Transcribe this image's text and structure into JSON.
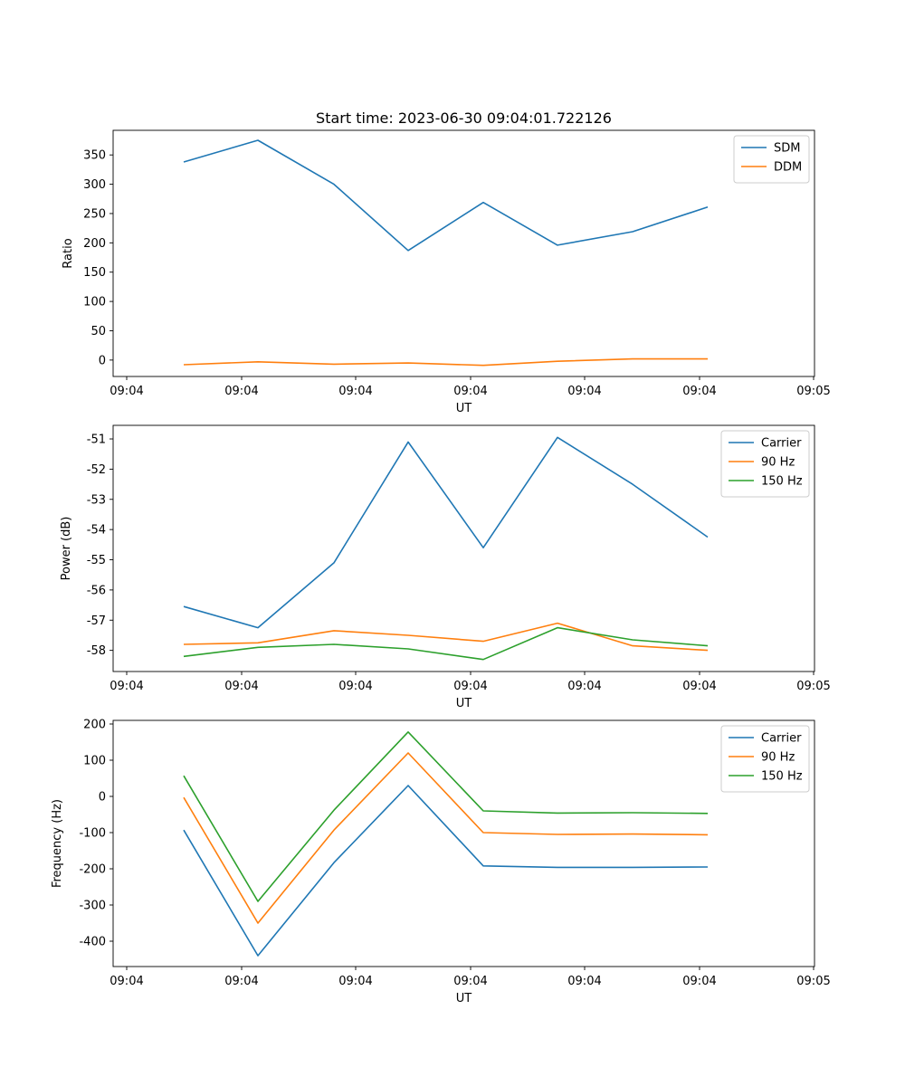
{
  "chart_data": [
    {
      "type": "line",
      "title": "Start time: 2023-06-30 09:04:01.722126",
      "xlabel": "UT",
      "ylabel": "Ratio",
      "ylim": [
        -28,
        392
      ],
      "yticks": [
        0,
        50,
        100,
        150,
        200,
        250,
        300,
        350
      ],
      "xticks": [
        "09:04",
        "09:04",
        "09:04",
        "09:04",
        "09:04",
        "09:04",
        "09:04"
      ],
      "xticks_last": "09:05",
      "legend_position": "top-right",
      "series": [
        {
          "name": "SDM",
          "color": "#1f77b4",
          "values": [
            338,
            375,
            300,
            187,
            269,
            196,
            219,
            261
          ]
        },
        {
          "name": "DDM",
          "color": "#ff7f0e",
          "values": [
            -8,
            -3,
            -7,
            -5,
            -9,
            -2,
            2,
            2
          ]
        }
      ]
    },
    {
      "type": "line",
      "title": "",
      "xlabel": "UT",
      "ylabel": "Power (dB)",
      "ylim": [
        -58.7,
        -50.55
      ],
      "yticks": [
        -51,
        -52,
        -53,
        -54,
        -55,
        -56,
        -57,
        -58
      ],
      "xticks": [
        "09:04",
        "09:04",
        "09:04",
        "09:04",
        "09:04",
        "09:04",
        "09:04"
      ],
      "xticks_last": "09:05",
      "legend_position": "top-right",
      "series": [
        {
          "name": "Carrier",
          "color": "#1f77b4",
          "values": [
            -56.55,
            -57.25,
            -55.1,
            -51.1,
            -54.6,
            -50.95,
            -52.5,
            -54.25
          ]
        },
        {
          "name": "90 Hz",
          "color": "#ff7f0e",
          "values": [
            -57.8,
            -57.75,
            -57.35,
            -57.5,
            -57.7,
            -57.1,
            -57.85,
            -58.0
          ]
        },
        {
          "name": "150 Hz",
          "color": "#2ca02c",
          "values": [
            -58.2,
            -57.9,
            -57.8,
            -57.95,
            -58.3,
            -57.25,
            -57.65,
            -57.85
          ]
        }
      ]
    },
    {
      "type": "line",
      "title": "",
      "xlabel": "UT",
      "ylabel": "Frequency (Hz)",
      "ylim": [
        -470,
        210
      ],
      "yticks": [
        200,
        100,
        0,
        -100,
        -200,
        -300,
        -400
      ],
      "xticks": [
        "09:04",
        "09:04",
        "09:04",
        "09:04",
        "09:04",
        "09:04",
        "09:04"
      ],
      "xticks_last": "09:05",
      "legend_position": "top-right",
      "series": [
        {
          "name": "Carrier",
          "color": "#1f77b4",
          "values": [
            -93,
            -440,
            -183,
            30,
            -192,
            -196,
            -196,
            -195
          ]
        },
        {
          "name": "90 Hz",
          "color": "#ff7f0e",
          "values": [
            -3,
            -350,
            -93,
            120,
            -100,
            -105,
            -104,
            -106
          ]
        },
        {
          "name": "150 Hz",
          "color": "#2ca02c",
          "values": [
            57,
            -290,
            -38,
            178,
            -40,
            -46,
            -45,
            -47
          ]
        }
      ]
    }
  ]
}
